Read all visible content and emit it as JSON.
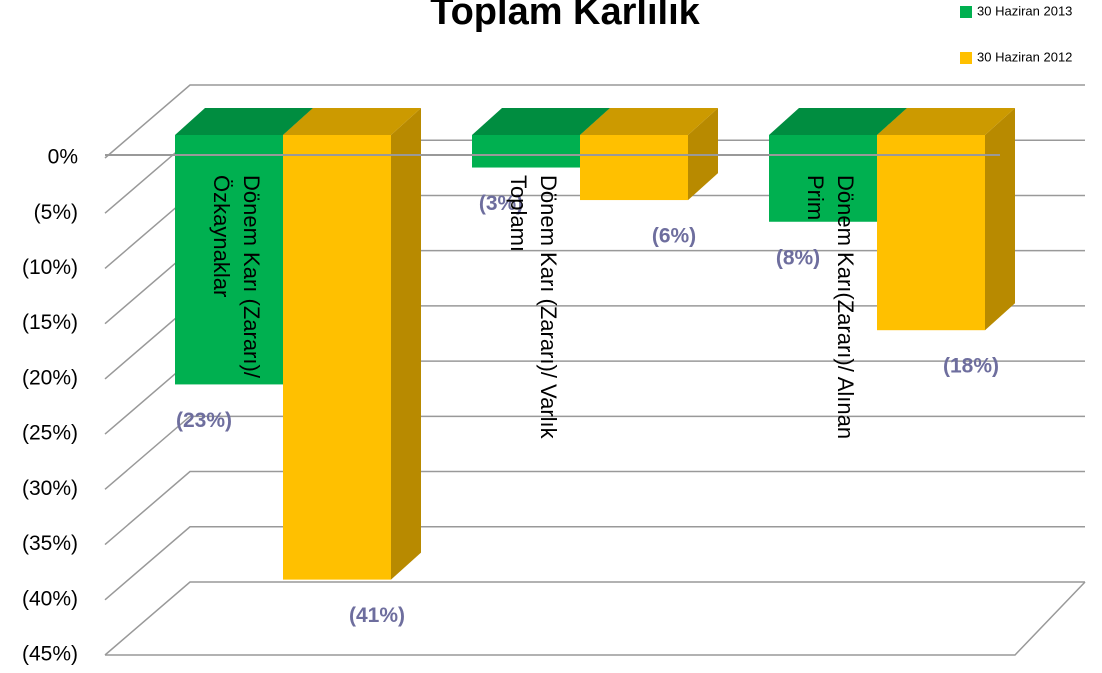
{
  "chart_data": {
    "type": "bar3d",
    "title": "Toplam Karlılık",
    "categories": [
      "Dönem Karı (Zararı)/ Özkaynaklar",
      "Dönem Karı (Zararı)/ Varlık Toplamı",
      "Dönem Karı(Zararı)/ Alınan Prim"
    ],
    "series": [
      {
        "name": "30 Haziran 2013",
        "color": "#00b050",
        "values": [
          -23,
          -3,
          -8
        ],
        "value_labels": [
          "(23%)",
          "(3%)",
          "(8%)"
        ]
      },
      {
        "name": "30 Haziran 2012",
        "color": "#ffc000",
        "values": [
          -41,
          -6,
          -18
        ],
        "value_labels": [
          "(41%)",
          "(6%)",
          "(18%)"
        ]
      }
    ],
    "ylim": [
      -45,
      0
    ],
    "yticks": [
      {
        "value": 0,
        "label": "0%"
      },
      {
        "value": -5,
        "label": "(5%)"
      },
      {
        "value": -10,
        "label": "(10%)"
      },
      {
        "value": -15,
        "label": "(15%)"
      },
      {
        "value": -20,
        "label": "(20%)"
      },
      {
        "value": -25,
        "label": "(25%)"
      },
      {
        "value": -30,
        "label": "(30%)"
      },
      {
        "value": -35,
        "label": "(35%)"
      },
      {
        "value": -40,
        "label": "(40%)"
      },
      {
        "value": -45,
        "label": "(45%)"
      }
    ],
    "grid": true,
    "legend": "top-right"
  }
}
